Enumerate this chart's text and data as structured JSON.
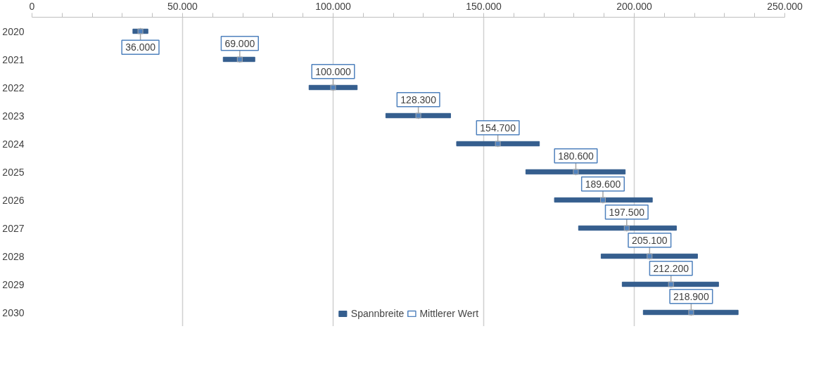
{
  "chart_data": {
    "type": "bar",
    "orientation": "horizontal",
    "categories": [
      "2020",
      "2021",
      "2022",
      "2023",
      "2024",
      "2025",
      "2026",
      "2027",
      "2028",
      "2029",
      "2030"
    ],
    "series": [
      {
        "name": "Spannbreite",
        "color": "#355e8e",
        "base": [
          33500,
          63500,
          92000,
          117500,
          141000,
          164000,
          173500,
          181500,
          189000,
          196000,
          203000
        ],
        "values": [
          5000,
          10500,
          16000,
          21500,
          27500,
          33000,
          32500,
          32500,
          32000,
          32000,
          31500
        ]
      },
      {
        "name": "Mittlerer Wert",
        "type": "scatter",
        "marker": "square",
        "color": "#4f81bd",
        "values": [
          36000,
          69000,
          100000,
          128300,
          154700,
          180600,
          189600,
          197500,
          205100,
          212200,
          218900
        ],
        "value_labels": [
          "36.000",
          "69.000",
          "100.000",
          "128.300",
          "154.700",
          "180.600",
          "189.600",
          "197.500",
          "205.100",
          "212.200",
          "218.900"
        ]
      }
    ],
    "xlim": [
      0,
      250000
    ],
    "xticks": [
      0,
      {
        "value": 10000,
        "label": null
      },
      {
        "value": 20000,
        "label": null
      },
      {
        "value": 30000,
        "label": null
      },
      {
        "value": 40000,
        "label": null
      },
      {
        "value": 50000,
        "label": "50.000"
      },
      {
        "value": 60000,
        "label": null
      },
      {
        "value": 70000,
        "label": null
      },
      {
        "value": 80000,
        "label": null
      },
      {
        "value": 90000,
        "label": null
      },
      {
        "value": 100000,
        "label": "100.000"
      },
      {
        "value": 110000,
        "label": null
      },
      {
        "value": 120000,
        "label": null
      },
      {
        "value": 130000,
        "label": null
      },
      {
        "value": 140000,
        "label": null
      },
      {
        "value": 150000,
        "label": "150.000"
      },
      {
        "value": 160000,
        "label": null
      },
      {
        "value": 170000,
        "label": null
      },
      {
        "value": 180000,
        "label": null
      },
      {
        "value": 190000,
        "label": null
      },
      {
        "value": 200000,
        "label": "200.000"
      },
      {
        "value": 210000,
        "label": null
      },
      {
        "value": 220000,
        "label": null
      },
      {
        "value": 230000,
        "label": null
      },
      {
        "value": 240000,
        "label": null
      },
      {
        "value": 250000,
        "label": "250.000"
      }
    ],
    "grid": "x",
    "legend": "bottom"
  }
}
